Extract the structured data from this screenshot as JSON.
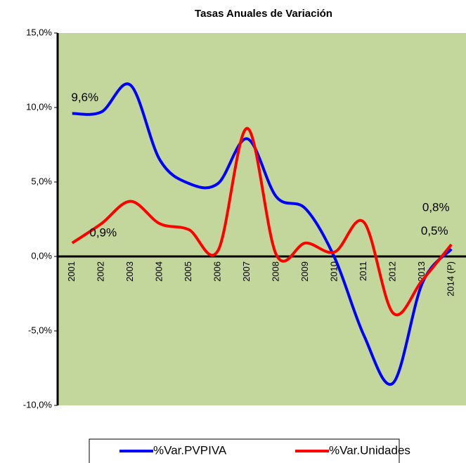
{
  "chart_data": {
    "type": "line",
    "title": "Tasas Anuales de Variación",
    "categories": [
      "2001",
      "2002",
      "2003",
      "2004",
      "2005",
      "2006",
      "2007",
      "2008",
      "2009",
      "2010",
      "2011",
      "2012",
      "2013",
      "2014 (P)"
    ],
    "series": [
      {
        "name": "%Var.PVPIVA",
        "color": "#0000ff",
        "values": [
          9.6,
          9.7,
          11.5,
          6.5,
          4.9,
          4.9,
          7.9,
          4.0,
          3.2,
          -0.1,
          -5.3,
          -8.5,
          -1.8,
          0.5
        ],
        "value_labels": [
          "9,6%",
          null,
          null,
          null,
          null,
          null,
          null,
          null,
          null,
          null,
          null,
          null,
          null,
          "0,5%"
        ]
      },
      {
        "name": "%Var.Unidades",
        "color": "#ff0000",
        "values": [
          0.9,
          2.2,
          3.7,
          2.2,
          1.8,
          0.4,
          8.6,
          0.1,
          0.9,
          0.3,
          2.3,
          -3.8,
          -1.6,
          0.8
        ],
        "value_labels": [
          "0,9%",
          null,
          null,
          null,
          null,
          null,
          null,
          null,
          null,
          null,
          null,
          null,
          null,
          "0,8%"
        ]
      }
    ],
    "ylim": [
      -10,
      15
    ],
    "yticks": [
      {
        "value": -10,
        "label": "-10,0%"
      },
      {
        "value": -5,
        "label": "-5,0%"
      },
      {
        "value": 0,
        "label": "0,0%"
      },
      {
        "value": 5,
        "label": "5,0%"
      },
      {
        "value": 10,
        "label": "10,0%"
      },
      {
        "value": 15,
        "label": "15,0%"
      }
    ],
    "legend": "bottom"
  }
}
